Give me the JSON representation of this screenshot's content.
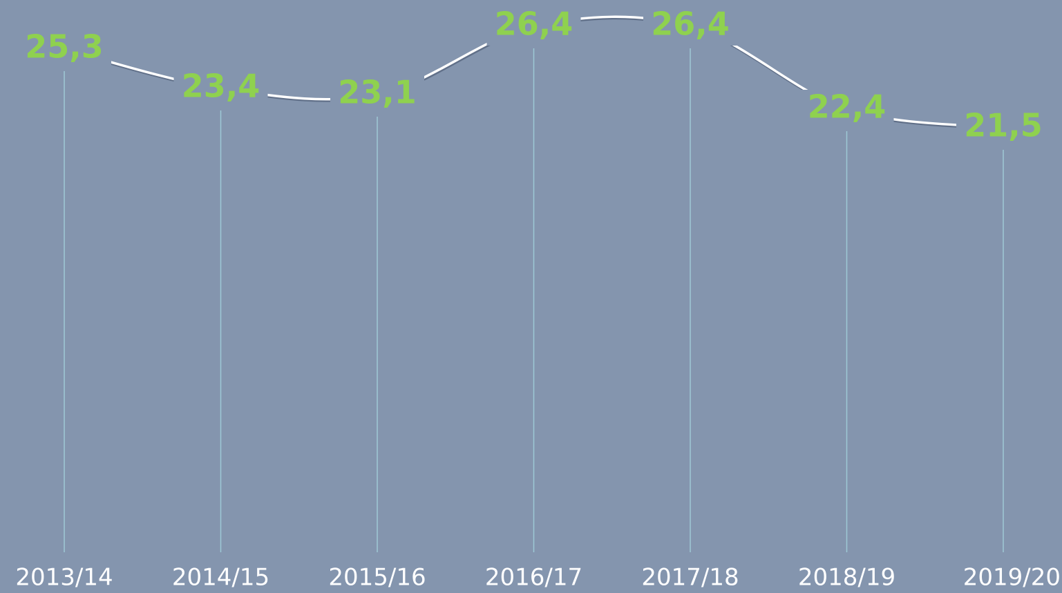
{
  "chart_data": {
    "type": "line",
    "categories": [
      "2013/14",
      "2014/15",
      "2015/16",
      "2016/17",
      "2017/18",
      "2018/19",
      "2019/20"
    ],
    "values": [
      25.3,
      23.4,
      23.1,
      26.4,
      26.4,
      22.4,
      21.5
    ],
    "value_labels": [
      "25,3",
      "23,4",
      "23,1",
      "26,4",
      "26,4",
      "22,4",
      "21,5"
    ],
    "color": "#ffffff",
    "label_color": "#8fd14f",
    "ylim": [
      1,
      27
    ]
  }
}
